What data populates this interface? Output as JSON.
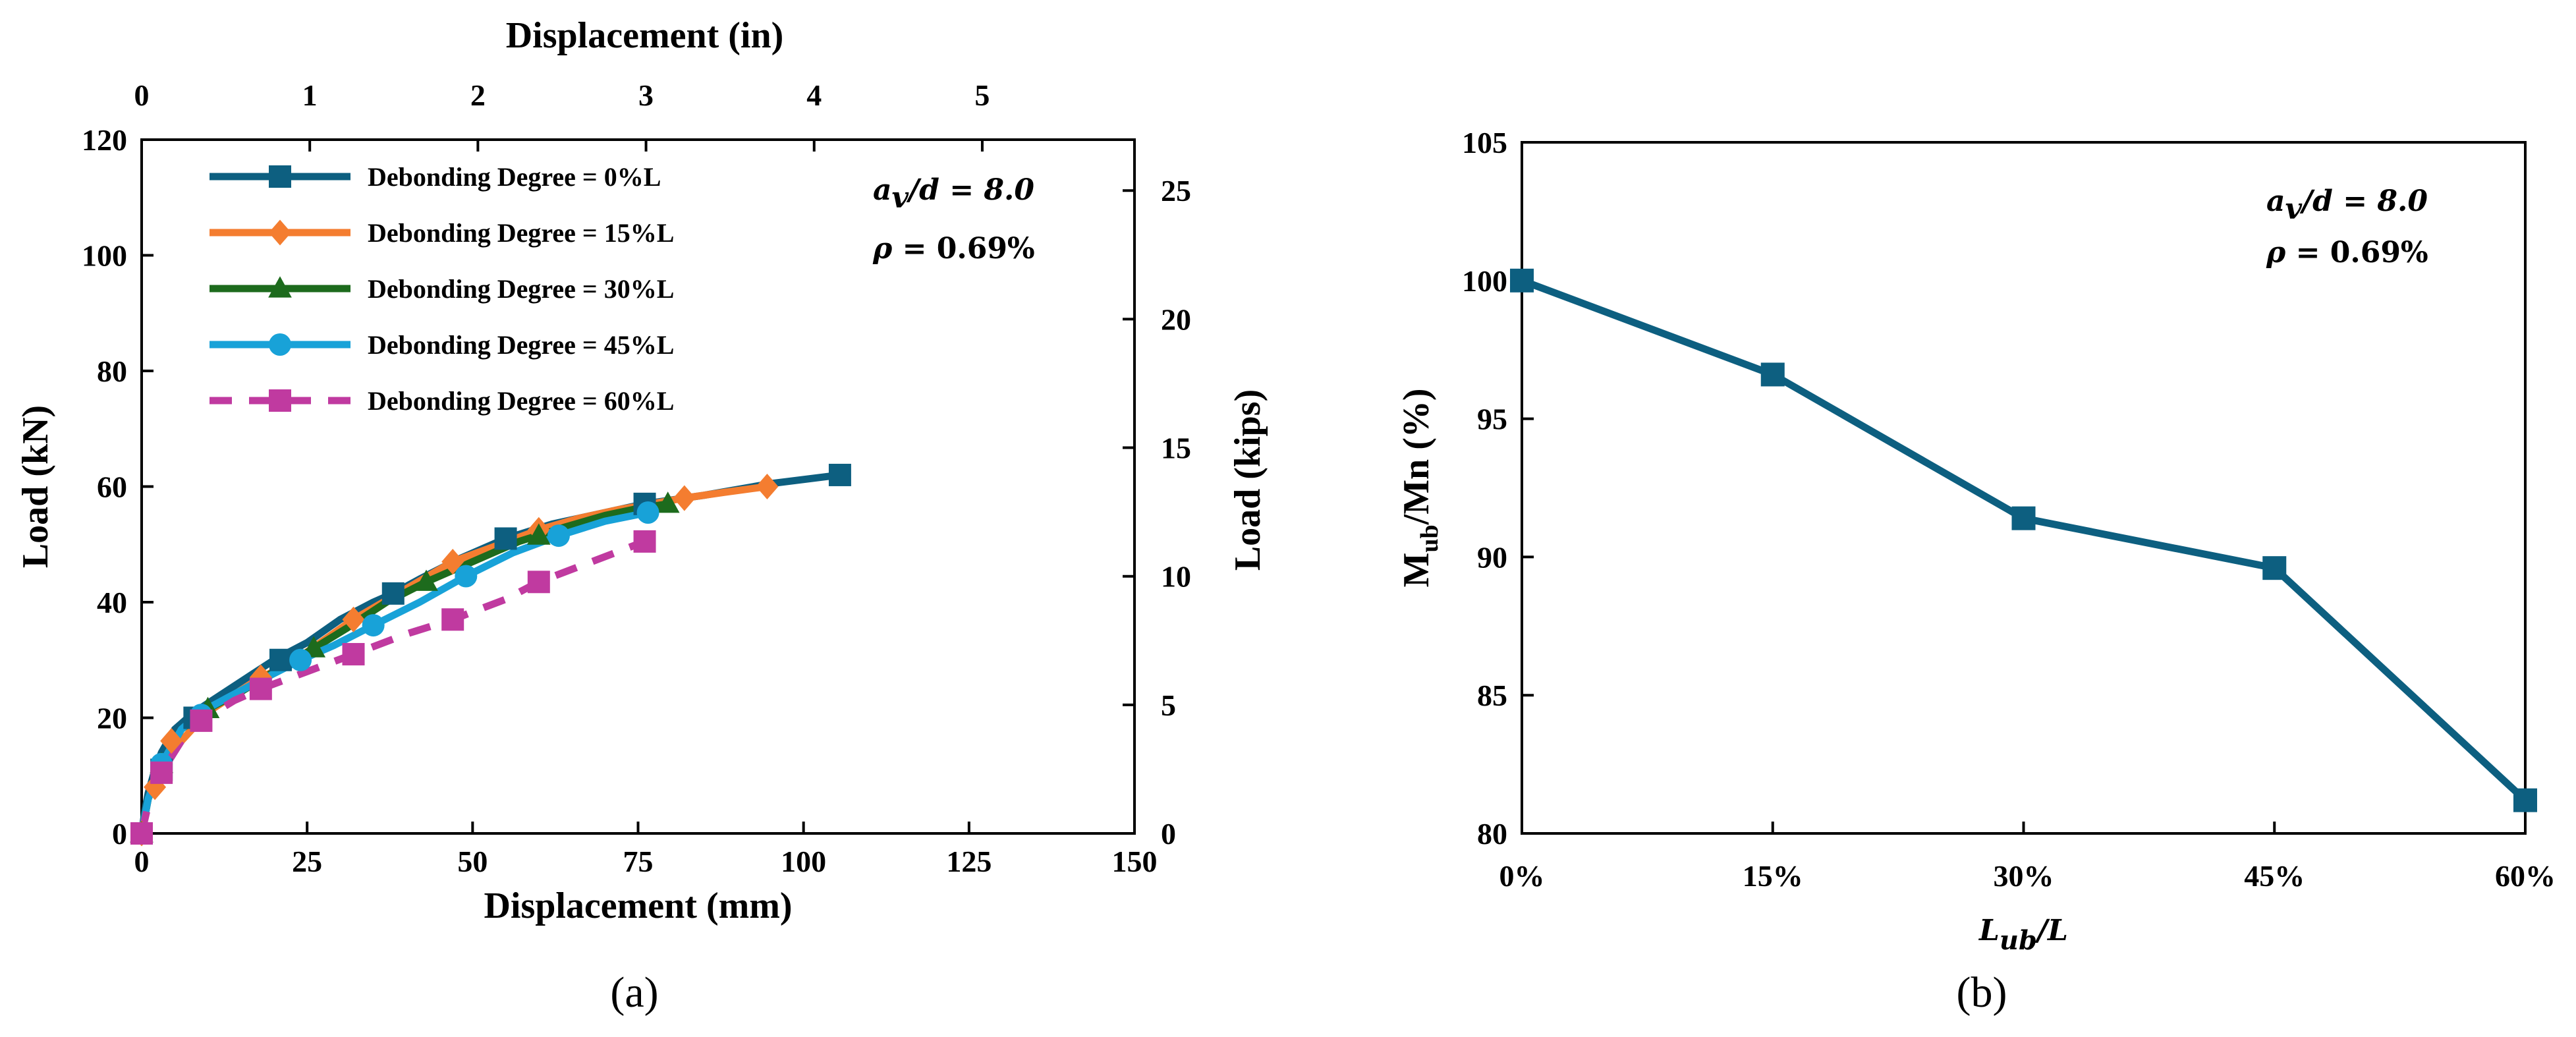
{
  "colors": {
    "dd0": "#0d5f80",
    "dd15": "#f47d30",
    "dd30": "#1d6b1d",
    "dd45": "#18a2d8",
    "dd60": "#c03aa0",
    "axis": "#000000"
  },
  "chart_data": [
    {
      "type": "line",
      "panel_label": "a",
      "title": "",
      "xlabel": "Displacement (mm)",
      "ylabel": "Load (kN)",
      "secondary_xlabel": "Displacement (in)",
      "secondary_ylabel": "Load (kips)",
      "xlim": [
        0,
        150
      ],
      "ylim": [
        0,
        120
      ],
      "x_ticks": [
        0,
        25,
        50,
        75,
        100,
        125,
        150
      ],
      "y_ticks": [
        0,
        20,
        40,
        60,
        80,
        100,
        120
      ],
      "top_x_ticks": [
        0,
        1,
        2,
        3,
        4,
        5
      ],
      "right_y_ticks": [
        0,
        5,
        10,
        15,
        20,
        25
      ],
      "grid": false,
      "legend_position": "top-left",
      "annotation": {
        "line1_math": "a_v / d = 8.0",
        "line1_main": "a",
        "line1_sub": "v",
        "line1_rest": "/d = 8.0",
        "line2_sym": "ρ",
        "line2_rest": " = 0.69%"
      },
      "series": [
        {
          "name": "Debonding Degree = 0%L",
          "color": "#0d5f80",
          "marker": "square",
          "dash": false,
          "x": [
            0,
            0.5,
            1,
            2,
            3,
            5,
            8,
            12,
            16,
            20,
            25,
            30,
            35,
            38,
            42,
            48,
            55,
            62,
            70,
            76,
            85,
            95,
            105.5
          ],
          "y": [
            0,
            4,
            7,
            11,
            14,
            18,
            21,
            24,
            27,
            30,
            33,
            37,
            40,
            41.5,
            44,
            47.5,
            51,
            53.5,
            55.5,
            57,
            58.5,
            60.5,
            62
          ],
          "marker_x": [
            0,
            3,
            8,
            21,
            38,
            55,
            76,
            105.5
          ],
          "marker_y": [
            0,
            11,
            20,
            30,
            41.5,
            51,
            57,
            62
          ]
        },
        {
          "name": "Debonding Degree = 15%L",
          "color": "#f47d30",
          "marker": "diamond",
          "dash": false,
          "x": [
            0,
            1,
            3,
            6,
            10,
            14,
            18,
            22,
            27,
            32,
            38,
            44,
            47,
            53,
            60,
            66,
            72,
            78,
            82,
            88,
            94.5
          ],
          "y": [
            0,
            6,
            11,
            16,
            21,
            24,
            27,
            29,
            33,
            37,
            41,
            45,
            47,
            49.5,
            52.5,
            54.5,
            56,
            57.2,
            58,
            59,
            60
          ],
          "marker_x": [
            0,
            2,
            4.5,
            18,
            32,
            47,
            60,
            82,
            94.5
          ],
          "marker_y": [
            0,
            8,
            16,
            27,
            37,
            47,
            52.5,
            58,
            60
          ]
        },
        {
          "name": "Debonding Degree = 30%L",
          "color": "#1d6b1d",
          "marker": "triangle",
          "dash": false,
          "x": [
            0,
            1,
            3,
            6,
            10,
            15,
            20,
            26,
            31,
            37,
            43,
            50,
            57,
            64,
            70,
            75,
            79.5
          ],
          "y": [
            0,
            6,
            12,
            18,
            21.5,
            24.5,
            28,
            32,
            35.5,
            40,
            43.5,
            47,
            50.5,
            53,
            55,
            56.2,
            57
          ],
          "marker_x": [
            0,
            3,
            10,
            26,
            43,
            60,
            79.5
          ],
          "marker_y": [
            0,
            12,
            21.5,
            32,
            43.5,
            51.5,
            57
          ]
        },
        {
          "name": "Debonding Degree = 45%L",
          "color": "#18a2d8",
          "marker": "circle",
          "dash": false,
          "x": [
            0,
            1,
            3,
            6,
            9,
            13,
            18,
            24,
            29,
            35,
            42,
            49,
            56,
            63,
            70,
            76.5
          ],
          "y": [
            0,
            6,
            12,
            18,
            21,
            23.5,
            26.5,
            30,
            32.5,
            36,
            40,
            44.5,
            48.5,
            51.5,
            54,
            55.5
          ],
          "marker_x": [
            0,
            3,
            9,
            24,
            35,
            49,
            63,
            76.5
          ],
          "marker_y": [
            0,
            12,
            20.5,
            30,
            36,
            44.5,
            51.5,
            55.5
          ]
        },
        {
          "name": "Debonding Degree = 60%L",
          "color": "#c03aa0",
          "marker": "square",
          "dash": true,
          "x": [
            0,
            1,
            3,
            6,
            9,
            14,
            18,
            25,
            32,
            40,
            47,
            55,
            60,
            68,
            76
          ],
          "y": [
            0,
            5,
            10.5,
            16,
            19.5,
            23,
            25,
            28,
            31,
            34.5,
            37,
            40.5,
            43.5,
            47,
            50.5
          ],
          "marker_x": [
            0,
            3,
            9,
            18,
            32,
            47,
            60,
            76
          ],
          "marker_y": [
            0,
            10.5,
            19.5,
            25,
            31,
            37,
            43.5,
            50.5
          ]
        }
      ]
    },
    {
      "type": "line",
      "panel_label": "b",
      "title": "",
      "xlabel": "L_ub / L",
      "xlabel_main": "L",
      "xlabel_sub": "ub",
      "xlabel_rest": "/L",
      "ylabel": "M_ub/Mn (%)",
      "ylabel_main": "M",
      "ylabel_sub": "ub",
      "ylabel_rest": "/Mn (%)",
      "categories": [
        "0%",
        "15%",
        "30%",
        "45%",
        "60%"
      ],
      "values": [
        100,
        96.6,
        91.4,
        89.6,
        81.2
      ],
      "ylim": [
        80,
        105
      ],
      "y_ticks": [
        80,
        85,
        90,
        95,
        100,
        105
      ],
      "grid": false,
      "color": "#0d5f80",
      "marker": "square",
      "annotation": {
        "line1_math": "a_v / d = 8.0",
        "line1_main": "a",
        "line1_sub": "v",
        "line1_rest": "/d = 8.0",
        "line2_sym": "ρ",
        "line2_rest": " = 0.69%"
      }
    }
  ]
}
